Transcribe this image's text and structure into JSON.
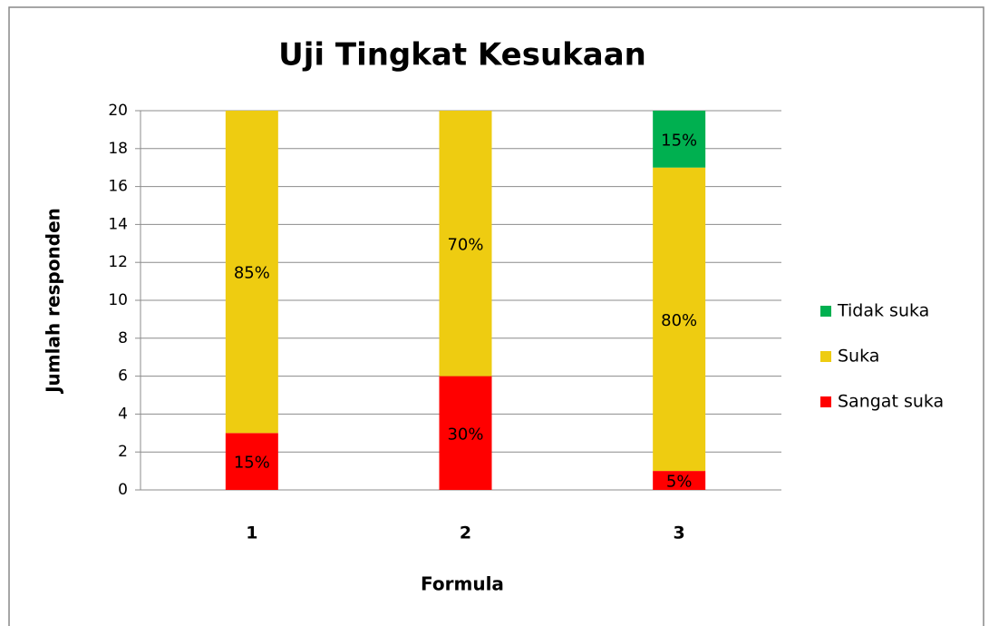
{
  "chart_data": {
    "type": "stacked_bar",
    "title": "Uji Tingkat Kesukaan",
    "x_label": "Formula",
    "y_label": "Jumlah responden",
    "categories": [
      "1",
      "2",
      "3"
    ],
    "series": [
      {
        "name": "Sangat suka",
        "color": "#ff0000",
        "values": [
          3,
          6,
          1
        ],
        "value_labels": [
          "15%",
          "30%",
          "5%"
        ]
      },
      {
        "name": "Suka",
        "color": "#eecc11",
        "values": [
          17,
          14,
          16
        ],
        "value_labels": [
          "85%",
          "70%",
          "80%"
        ]
      },
      {
        "name": "Tidak suka",
        "color": "#00b050",
        "values": [
          0,
          0,
          3
        ],
        "value_labels": [
          null,
          null,
          "15%"
        ]
      }
    ],
    "ylim": [
      0,
      20
    ],
    "yticks": [
      0,
      2,
      4,
      6,
      8,
      10,
      12,
      14,
      16,
      18,
      20
    ],
    "grid": true,
    "legend": "right"
  }
}
